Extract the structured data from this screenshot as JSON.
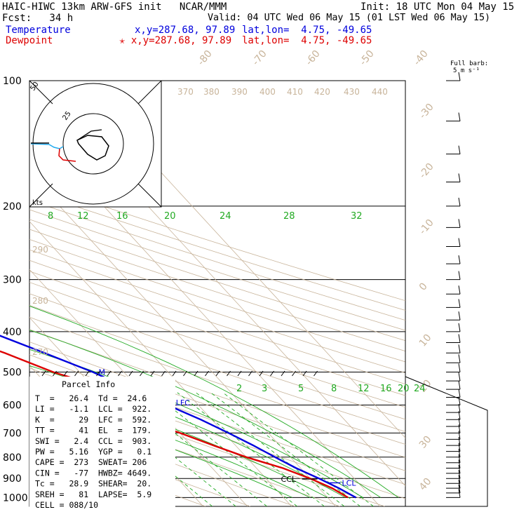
{
  "header": {
    "model": "HAIC-HIWC 13km ARW-GFS init   NCAR/MMM",
    "init": "Init: 18 UTC Mon 04 May 15",
    "fcst": "Fcst:   34 h",
    "valid": "Valid: 04 UTC Wed 06 May 15 (01 LST Wed 06 May 15)",
    "temp_label": "Temperature",
    "temp_xy": "x,y=287.68, 97.89",
    "temp_latlon": "lat,lon=  4.75, -49.65",
    "dew_label": "Dewpoint",
    "dew_xy": "✭ x,y=287.68, 97.89",
    "dew_latlon": "lat,lon=  4.75, -49.65"
  },
  "barb_key": {
    "line1": "Full barb:",
    "line2": "5 m s⁻¹"
  },
  "hodograph": {
    "ring_label": "25",
    "inner_label": "50",
    "units": "kts"
  },
  "parcel_info": {
    "title": "Parcel Info",
    "rows": [
      "T  =   26.4  Td =  24.6",
      "LI =   -1.1  LCL =  922.",
      "K  =     29  LFC =  592.",
      "TT =     41  EL  =  179.",
      "SWI =   2.4  CCL =  903.",
      "PW =   5.16  YGP =   0.1",
      "CAPE =  273  SWEAT= 206",
      "CIN =   -77  HWBZ= 4649.",
      "Tc =   28.9  SHEAR=  20.",
      "SREH =   81  LAPSE=  5.9",
      "CELL = 088/10"
    ]
  },
  "colors": {
    "temperature": "#0000dd",
    "dewpoint": "#dd0000",
    "isotherm": "#c8b49a",
    "dry_adiabat": "#c8b49a",
    "moist_adiabat": "#22aa22",
    "mixing_ratio": "#22aa22"
  },
  "chart_data": {
    "type": "skew-t",
    "pressure_ticks": [
      100,
      200,
      300,
      400,
      500,
      600,
      700,
      800,
      900,
      1000
    ],
    "isotherm_labels": [
      "-80",
      "-70",
      "-60",
      "-50",
      "-40",
      "-30",
      "-20",
      "-10",
      "0",
      "10",
      "20",
      "30",
      "40"
    ],
    "theta_labels": [
      "370",
      "380",
      "390",
      "400",
      "410",
      "420",
      "430",
      "440",
      "290",
      "280",
      "270"
    ],
    "theta_e_labels": [
      "8",
      "12",
      "16",
      "20",
      "24",
      "28",
      "32"
    ],
    "mixing_ratio_labels": [
      "2",
      "3",
      "5",
      "8",
      "12",
      "16",
      "20",
      "24"
    ],
    "temperature": [
      {
        "p": 100,
        "t": -85
      },
      {
        "p": 110,
        "t": -86
      },
      {
        "p": 130,
        "t": -85
      },
      {
        "p": 150,
        "t": -82
      },
      {
        "p": 180,
        "t": -73
      },
      {
        "p": 200,
        "t": -66
      },
      {
        "p": 250,
        "t": -52
      },
      {
        "p": 300,
        "t": -41
      },
      {
        "p": 350,
        "t": -31
      },
      {
        "p": 400,
        "t": -22
      },
      {
        "p": 450,
        "t": -14
      },
      {
        "p": 500,
        "t": -7
      },
      {
        "p": 550,
        "t": -2
      },
      {
        "p": 600,
        "t": 3
      },
      {
        "p": 650,
        "t": 7.5
      },
      {
        "p": 700,
        "t": 11
      },
      {
        "p": 750,
        "t": 14
      },
      {
        "p": 800,
        "t": 16.5
      },
      {
        "p": 850,
        "t": 19
      },
      {
        "p": 900,
        "t": 22
      },
      {
        "p": 950,
        "t": 24.5
      },
      {
        "p": 1000,
        "t": 26.4
      }
    ],
    "dewpoint": [
      {
        "p": 100,
        "t": -92
      },
      {
        "p": 120,
        "t": -102
      },
      {
        "p": 150,
        "t": -108
      },
      {
        "p": 180,
        "t": -100
      },
      {
        "p": 200,
        "t": -92
      },
      {
        "p": 250,
        "t": -86
      },
      {
        "p": 300,
        "t": -70
      },
      {
        "p": 350,
        "t": -50
      },
      {
        "p": 400,
        "t": -32
      },
      {
        "p": 450,
        "t": -23
      },
      {
        "p": 500,
        "t": -16
      },
      {
        "p": 550,
        "t": -7
      },
      {
        "p": 600,
        "t": -3
      },
      {
        "p": 650,
        "t": -6
      },
      {
        "p": 700,
        "t": 0
      },
      {
        "p": 750,
        "t": 5
      },
      {
        "p": 800,
        "t": 10
      },
      {
        "p": 850,
        "t": 16
      },
      {
        "p": 900,
        "t": 20
      },
      {
        "p": 950,
        "t": 23
      },
      {
        "p": 1000,
        "t": 24.6
      }
    ],
    "levels": [
      {
        "name": "EL",
        "p": 179
      },
      {
        "name": "LFC",
        "p": 592
      },
      {
        "name": "LCL",
        "p": 922
      },
      {
        "name": "CCL",
        "p": 903
      },
      {
        "name": "M",
        "p": 500
      }
    ]
  }
}
